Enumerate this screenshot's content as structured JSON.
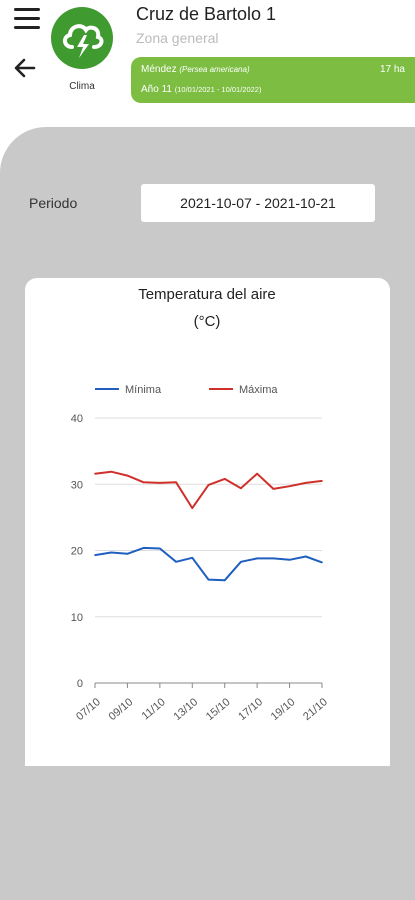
{
  "header": {
    "title": "Cruz de Bartolo 1",
    "subtitle": "Zona general",
    "logo_label": "Clima"
  },
  "info_card": {
    "owner": "Méndez",
    "crop": "(Persea americana)",
    "area": "17 ha",
    "season": "Año 11",
    "season_range": "(10/01/2021 - 10/01/2022)"
  },
  "filter": {
    "period_label": "Periodo",
    "period_value": "2021-10-07 - 2021-10-21"
  },
  "colors": {
    "brand_green": "#3f9a2f",
    "card_green": "#7cbd42",
    "min_series": "#1f5fbf",
    "max_series": "#d0302a"
  },
  "chart_data": {
    "type": "line",
    "title": "Temperatura del aire",
    "subtitle": "(°C)",
    "x": [
      "07/10",
      "08/10",
      "09/10",
      "10/10",
      "11/10",
      "12/10",
      "13/10",
      "14/10",
      "15/10",
      "16/10",
      "17/10",
      "18/10",
      "19/10",
      "20/10",
      "21/10"
    ],
    "xticks": [
      "07/10",
      "09/10",
      "11/10",
      "13/10",
      "15/10",
      "17/10",
      "19/10",
      "21/10"
    ],
    "yticks": [
      0,
      10,
      20,
      30,
      40
    ],
    "ylim": [
      0,
      40
    ],
    "grid": true,
    "legend": "top",
    "series": [
      {
        "name": "Mínima",
        "color": "#1f5fbf",
        "values": [
          19.3,
          19.7,
          19.5,
          20.4,
          20.3,
          18.3,
          18.9,
          15.6,
          15.5,
          18.3,
          18.8,
          18.8,
          18.6,
          19.1,
          18.2
        ]
      },
      {
        "name": "Máxima",
        "color": "#d0302a",
        "values": [
          31.6,
          31.9,
          31.3,
          30.3,
          30.2,
          30.3,
          26.4,
          29.9,
          30.8,
          29.4,
          31.6,
          29.3,
          29.7,
          30.2,
          30.5
        ]
      }
    ]
  }
}
